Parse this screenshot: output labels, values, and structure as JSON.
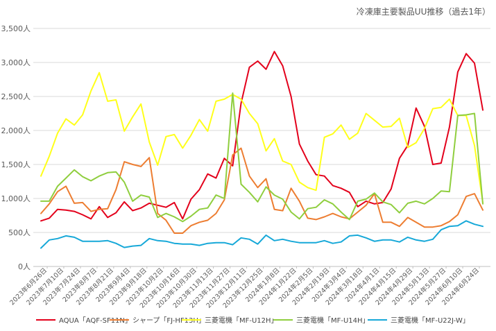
{
  "chart_data": {
    "type": "line",
    "title": "冷凍庫主要製品UU推移（過去1年）",
    "xlabel": "",
    "ylabel": "",
    "ylim": [
      0,
      3500
    ],
    "ytick_values": [
      0,
      500,
      1000,
      1500,
      2000,
      2500,
      3000,
      3500
    ],
    "ytick_labels": [
      "0人",
      "500人",
      "1,000人",
      "1,500人",
      "2,000人",
      "2,500人",
      "3,000人",
      "3,500人"
    ],
    "xtick_labels": [
      "2023年6月26日",
      "2023年7月10日",
      "2023年7月24日",
      "2023年8月7日",
      "2023年8月21日",
      "2023年9月4日",
      "2023年9月18日",
      "2023年10月2日",
      "2023年10月16日",
      "2023年10月30日",
      "2023年11月13日",
      "2023年11月27日",
      "2023年12月11日",
      "2023年12月25日",
      "2024年1月8日",
      "2024年1月22日",
      "2024年2月5日",
      "2024年2月19日",
      "2024年3月4日",
      "2024年3月18日",
      "2024年4月1日",
      "2024年4月15日",
      "2024年4月29日",
      "2024年5月13日",
      "2024年5月27日",
      "2024年6月10日",
      "2024年6月24日"
    ],
    "grid": true,
    "legend_position": "bottom",
    "series": [
      {
        "name": "AQUA「AQF-SF11N」",
        "color": "#e3001b",
        "values": [
          670,
          710,
          840,
          830,
          810,
          760,
          700,
          880,
          720,
          790,
          950,
          820,
          860,
          930,
          900,
          870,
          940,
          700,
          990,
          1130,
          1360,
          1300,
          1590,
          1480,
          2400,
          2930,
          3020,
          2900,
          3160,
          2950,
          2500,
          1800,
          1550,
          1350,
          1330,
          1190,
          1150,
          1090,
          880,
          960,
          920,
          940,
          1140,
          1590,
          1780,
          2330,
          2060,
          1500,
          1520,
          2050,
          2860,
          3130,
          2990,
          2300
        ]
      },
      {
        "name": "シャープ「FJ-HF13H」",
        "color": "#ed7d31",
        "values": [
          780,
          920,
          1100,
          1180,
          930,
          940,
          810,
          840,
          850,
          1130,
          1540,
          1500,
          1470,
          1600,
          780,
          680,
          490,
          490,
          600,
          650,
          680,
          780,
          980,
          1640,
          1740,
          1330,
          1160,
          1290,
          840,
          820,
          1150,
          960,
          710,
          690,
          730,
          780,
          730,
          700,
          800,
          900,
          1070,
          650,
          650,
          590,
          720,
          650,
          580,
          580,
          600,
          660,
          760,
          1030,
          1070,
          830
        ]
      },
      {
        "name": "三菱電機「MF-U12H」",
        "color": "#ffff1a",
        "values": [
          1330,
          1620,
          1960,
          2170,
          2080,
          2230,
          2580,
          2850,
          2430,
          2450,
          1990,
          2200,
          2390,
          1830,
          1490,
          1910,
          1940,
          1740,
          1930,
          2160,
          1990,
          2430,
          2460,
          2530,
          2460,
          2250,
          2100,
          1700,
          1880,
          1550,
          1500,
          1240,
          1160,
          1120,
          1900,
          1950,
          2080,
          1870,
          1960,
          2250,
          2150,
          2050,
          2060,
          2180,
          1750,
          1820,
          2030,
          2320,
          2340,
          2460,
          2220,
          2220,
          1780,
          940
        ]
      },
      {
        "name": "三菱電機「MF-U14H」",
        "color": "#8fce3e",
        "values": [
          960,
          960,
          1180,
          1300,
          1420,
          1320,
          1260,
          1330,
          1380,
          1390,
          1240,
          960,
          1050,
          1020,
          720,
          780,
          730,
          660,
          740,
          840,
          860,
          1050,
          1000,
          2550,
          1210,
          1090,
          950,
          1170,
          1050,
          990,
          800,
          700,
          850,
          870,
          980,
          920,
          800,
          690,
          960,
          990,
          1080,
          950,
          910,
          790,
          930,
          960,
          920,
          1000,
          1110,
          1100,
          2220,
          2230,
          2250,
          920
        ]
      },
      {
        "name": "三菱電機「MF-U22J-W」",
        "color": "#16a8d8",
        "values": [
          270,
          390,
          410,
          450,
          430,
          370,
          370,
          370,
          380,
          340,
          280,
          300,
          310,
          410,
          380,
          370,
          340,
          330,
          330,
          310,
          340,
          350,
          350,
          320,
          420,
          400,
          330,
          460,
          380,
          400,
          370,
          350,
          350,
          350,
          380,
          340,
          360,
          450,
          460,
          420,
          370,
          390,
          390,
          360,
          430,
          390,
          370,
          400,
          540,
          590,
          600,
          670,
          620,
          590
        ]
      }
    ]
  }
}
